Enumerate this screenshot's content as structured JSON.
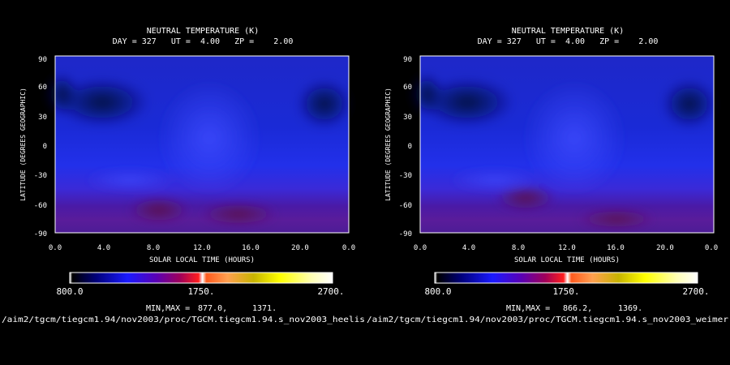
{
  "chart_data": [
    {
      "type": "heatmap",
      "title": "NEUTRAL TEMPERATURE (K)",
      "subtitle": "DAY = 327   UT =  4.00   ZP =    2.00",
      "xlabel": "SOLAR LOCAL TIME (HOURS)",
      "ylabel": "LATITUDE (DEGREES GEOGRAPHIC)",
      "xlim": [
        0,
        24
      ],
      "ylim": [
        -90,
        90
      ],
      "x_ticks": [
        "0.0",
        "4.0",
        "8.0",
        "12.0",
        "16.0",
        "20.0",
        "0.0"
      ],
      "y_ticks": [
        "90",
        "60",
        "30",
        "0",
        "-30",
        "-60",
        "-90"
      ],
      "colorbar": {
        "min_label": "800.0",
        "mid_label": "1750.",
        "max_label": "2700.",
        "min": 800,
        "max": 2700
      },
      "minmax_label": "MIN,MAX =",
      "min_value": "877.0,",
      "max_value": "1371.",
      "path": "/aim2/tgcm/tiegcm1.94/nov2003/proc/TGCM.tiegcm1.94.s_nov2003_heelis",
      "cold_region": {
        "lt": 3.5,
        "lat": 35,
        "value": 877
      },
      "warm_regions": [
        {
          "lt": 8.5,
          "lat": -62,
          "value": 1371
        },
        {
          "lt": 15.0,
          "lat": -65,
          "value": 1300
        }
      ]
    },
    {
      "type": "heatmap",
      "title": "NEUTRAL TEMPERATURE (K)",
      "subtitle": "DAY = 327   UT =  4.00   ZP =    2.00",
      "xlabel": "SOLAR LOCAL TIME (HOURS)",
      "ylabel": "LATITUDE (DEGREES GEOGRAPHIC)",
      "xlim": [
        0,
        24
      ],
      "ylim": [
        -90,
        90
      ],
      "x_ticks": [
        "0.0",
        "4.0",
        "8.0",
        "12.0",
        "16.0",
        "20.0",
        "0.0"
      ],
      "y_ticks": [
        "90",
        "60",
        "30",
        "0",
        "-30",
        "-60",
        "-90"
      ],
      "colorbar": {
        "min_label": "800.0",
        "mid_label": "1750.",
        "max_label": "2700.",
        "min": 800,
        "max": 2700
      },
      "minmax_label": "MIN,MAX =",
      "min_value": "866.2,",
      "max_value": "1369.",
      "path": "/aim2/tgcm/tiegcm1.94/nov2003/proc/TGCM.tiegcm1.94.s_nov2003_weimer",
      "cold_region": {
        "lt": 3.5,
        "lat": 35,
        "value": 866
      },
      "warm_regions": [
        {
          "lt": 8.5,
          "lat": -60,
          "value": 1369
        },
        {
          "lt": 15.0,
          "lat": -68,
          "value": 1290
        }
      ]
    }
  ]
}
